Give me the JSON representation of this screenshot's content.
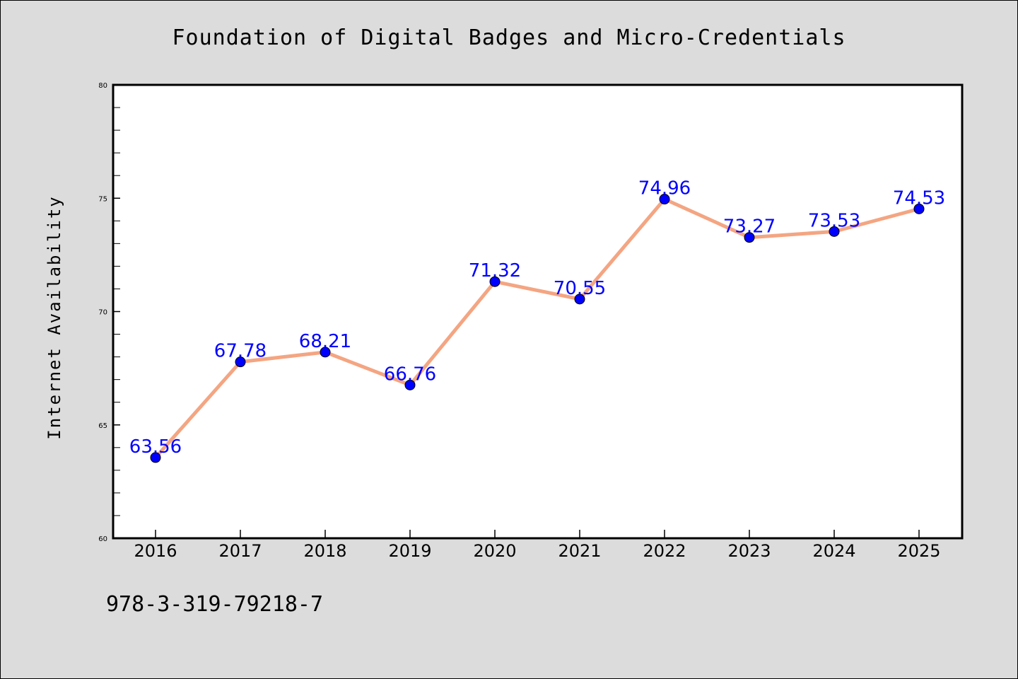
{
  "chart_data": {
    "type": "line",
    "title": "Foundation of Digital Badges and Micro-Credentials",
    "xlabel": "",
    "ylabel": "Internet Availability",
    "categories": [
      "2016",
      "2017",
      "2018",
      "2019",
      "2020",
      "2021",
      "2022",
      "2023",
      "2024",
      "2025"
    ],
    "series": [
      {
        "values": [
          63.56,
          67.78,
          68.21,
          66.76,
          71.32,
          70.55,
          74.96,
          73.27,
          73.53,
          74.53
        ],
        "line_color": "#f4a582",
        "marker_color": "#0000ff"
      }
    ],
    "data_labels": [
      "63.56",
      "67.78",
      "68.21",
      "66.76",
      "71.32",
      "70.55",
      "74.96",
      "73.27",
      "73.53",
      "74.53"
    ],
    "ylim": [
      60,
      80
    ],
    "yticks": [
      60,
      65,
      70,
      75,
      80
    ],
    "ytick_labels": [
      "60",
      "65",
      "70",
      "75",
      "80"
    ],
    "grid": false,
    "legend": "none"
  },
  "footer": {
    "isbn": "978-3-319-79218-7"
  },
  "colors": {
    "background": "#dcdcdc",
    "plot_background": "#ffffff",
    "label_color": "#0000ff"
  }
}
